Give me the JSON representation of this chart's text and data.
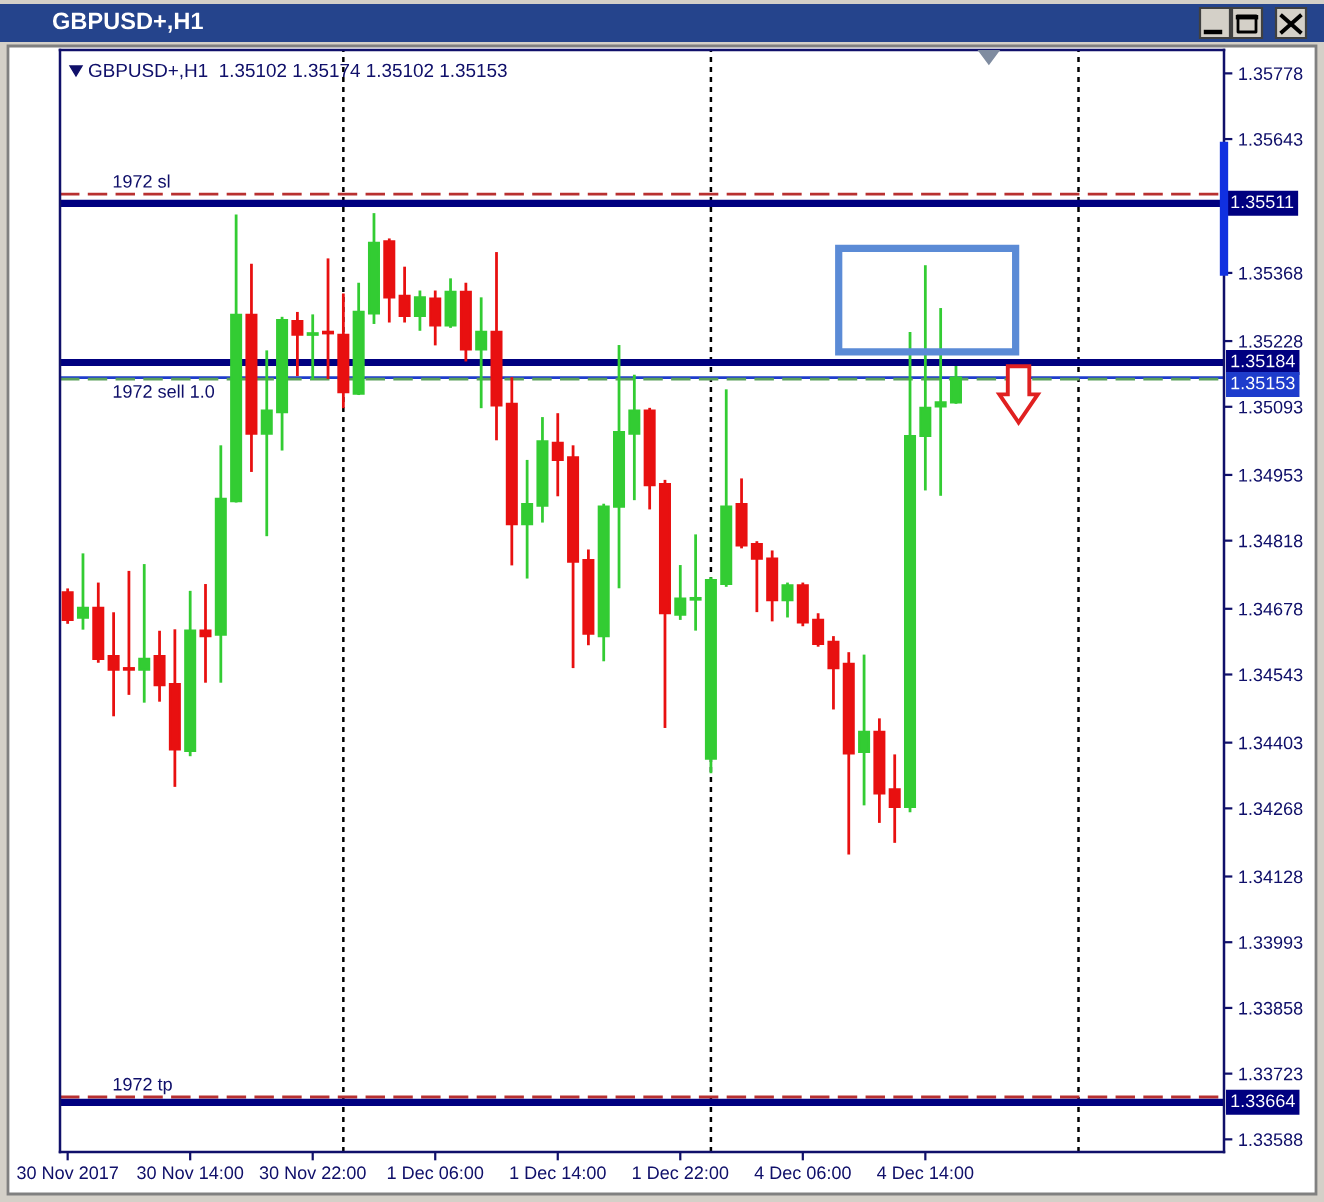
{
  "chart_data": {
    "type": "candlestick",
    "title": "GBPUSD+,H1",
    "subtitle": "GBPUSD+,H1  1.35102 1.35174 1.35102 1.35153",
    "categories": [
      "30 Nov 2017",
      null,
      null,
      null,
      null,
      null,
      null,
      null,
      "30 Nov 14:00",
      null,
      null,
      null,
      null,
      null,
      null,
      null,
      "30 Nov 22:00",
      null,
      null,
      null,
      null,
      null,
      null,
      null,
      "1 Dec 06:00",
      null,
      null,
      null,
      null,
      null,
      null,
      null,
      "1 Dec 14:00",
      null,
      null,
      null,
      null,
      null,
      null,
      null,
      "1 Dec 22:00",
      null,
      null,
      null,
      null,
      null,
      null,
      null,
      "4 Dec 06:00",
      null,
      null,
      null,
      null,
      null,
      null,
      null,
      "4 Dec 14:00",
      null,
      null,
      null,
      null,
      null,
      null,
      null,
      null,
      null,
      null,
      null,
      null,
      null,
      null,
      null,
      null,
      null,
      null,
      null
    ],
    "ohlc": [
      [
        1.34712,
        1.34717,
        1.3465,
        1.34655
      ],
      [
        1.3466,
        1.34789,
        1.34638,
        1.3468
      ],
      [
        1.3468,
        1.34729,
        1.3457,
        1.34575
      ],
      [
        1.34581,
        1.34668,
        1.3446,
        1.34553
      ],
      [
        1.34556,
        1.34753,
        1.34504,
        1.34553
      ],
      [
        1.34553,
        1.34767,
        1.34488,
        1.34575
      ],
      [
        1.34581,
        1.3463,
        1.3449,
        1.34521
      ],
      [
        1.34523,
        1.34633,
        1.34315,
        1.34389
      ],
      [
        1.34386,
        1.34712,
        1.34378,
        1.34633
      ],
      [
        1.34633,
        1.34726,
        1.34529,
        1.34622
      ],
      [
        1.34625,
        1.35011,
        1.34529,
        1.34904
      ],
      [
        1.34899,
        1.35485,
        1.34899,
        1.35282
      ],
      [
        1.35282,
        1.35384,
        1.34962,
        1.35038
      ],
      [
        1.35038,
        1.35206,
        1.3483,
        1.35085
      ],
      [
        1.35082,
        1.35275,
        1.35006,
        1.35271
      ],
      [
        1.35269,
        1.35285,
        1.35159,
        1.35241
      ],
      [
        1.35241,
        1.3528,
        1.35151,
        1.35244
      ],
      [
        1.35247,
        1.35395,
        1.35153,
        1.35244
      ],
      [
        1.35241,
        1.35323,
        1.35093,
        1.35123
      ],
      [
        1.3512,
        1.35345,
        1.3512,
        1.35288
      ],
      [
        1.35285,
        1.35488,
        1.35266,
        1.3543
      ],
      [
        1.35433,
        1.35436,
        1.35269,
        1.35318
      ],
      [
        1.35321,
        1.35378,
        1.35269,
        1.3528
      ],
      [
        1.3528,
        1.35329,
        1.35252,
        1.35318
      ],
      [
        1.35315,
        1.35329,
        1.35222,
        1.3526
      ],
      [
        1.3526,
        1.35354,
        1.35258,
        1.35329
      ],
      [
        1.35329,
        1.35345,
        1.35189,
        1.35211
      ],
      [
        1.35211,
        1.35315,
        1.35093,
        1.35247
      ],
      [
        1.35247,
        1.35408,
        1.35027,
        1.35096
      ],
      [
        1.35099,
        1.35151,
        1.3477,
        1.34852
      ],
      [
        1.34852,
        1.34981,
        1.34743,
        1.34893
      ],
      [
        1.3489,
        1.35069,
        1.34858,
        1.35022
      ],
      [
        1.35019,
        1.35077,
        1.34912,
        1.34984
      ],
      [
        1.34989,
        1.35011,
        1.34559,
        1.34775
      ],
      [
        1.34778,
        1.34797,
        1.34606,
        1.34627
      ],
      [
        1.34622,
        1.34891,
        1.34573,
        1.34888
      ],
      [
        1.34888,
        1.35217,
        1.34723,
        1.35041
      ],
      [
        1.35038,
        1.35156,
        1.34904,
        1.35085
      ],
      [
        1.35085,
        1.35088,
        1.34885,
        1.34932
      ],
      [
        1.34934,
        1.3494,
        1.34436,
        1.34669
      ],
      [
        1.34666,
        1.34765,
        1.34658,
        1.34699
      ],
      [
        1.34697,
        1.34828,
        1.34636,
        1.347
      ],
      [
        1.3437,
        1.3474,
        1.34343,
        1.34737
      ],
      [
        1.34729,
        1.35126,
        1.34726,
        1.34888
      ],
      [
        1.34893,
        1.34943,
        1.34805,
        1.34808
      ],
      [
        1.34811,
        1.34814,
        1.34674,
        1.34781
      ],
      [
        1.34781,
        1.34795,
        1.34655,
        1.34696
      ],
      [
        1.34696,
        1.34729,
        1.34663,
        1.34726
      ],
      [
        1.34726,
        1.34729,
        1.34645,
        1.3465
      ],
      [
        1.34655,
        1.34666,
        1.34603,
        1.34606
      ],
      [
        1.3461,
        1.34619,
        1.34474,
        1.34556
      ],
      [
        1.34565,
        1.34586,
        1.34176,
        1.34381
      ],
      [
        1.34384,
        1.34581,
        1.34277,
        1.34425
      ],
      [
        1.34425,
        1.3445,
        1.34241,
        1.34299
      ],
      [
        1.34307,
        1.34376,
        1.342,
        1.34271
      ],
      [
        1.34271,
        1.35244,
        1.34263,
        1.35033
      ],
      [
        1.35033,
        1.35381,
        1.34924,
        1.35091
      ],
      [
        1.35094,
        1.35293,
        1.34913,
        1.35102
      ],
      [
        1.35102,
        1.35174,
        1.35102,
        1.35153
      ],
      null,
      null,
      null,
      null,
      null,
      null,
      null,
      null,
      null,
      null,
      null,
      null,
      null,
      null,
      null,
      null,
      null
    ],
    "colors": [
      "#e81010",
      "#33cc33",
      "#e81010",
      "#e81010",
      "#e81010",
      "#33cc33",
      "#e81010",
      "#e81010",
      "#33cc33",
      "#e81010",
      "#33cc33",
      "#33cc33",
      "#e81010",
      "#33cc33",
      "#33cc33",
      "#e81010",
      "#33cc33",
      "#e81010",
      "#e81010",
      "#33cc33",
      "#33cc33",
      "#e81010",
      "#e81010",
      "#33cc33",
      "#e81010",
      "#33cc33",
      "#e81010",
      "#33cc33",
      "#e81010",
      "#e81010",
      "#33cc33",
      "#33cc33",
      "#e81010",
      "#e81010",
      "#e81010",
      "#33cc33",
      "#33cc33",
      "#33cc33",
      "#e81010",
      "#e81010",
      "#33cc33",
      "#33cc33",
      "#33cc33",
      "#33cc33",
      "#e81010",
      "#e81010",
      "#e81010",
      "#33cc33",
      "#e81010",
      "#e81010",
      "#e81010",
      "#e81010",
      "#33cc33",
      "#e81010",
      "#e81010",
      "#33cc33",
      "#33cc33",
      "#33cc33",
      "#33cc33",
      null,
      null,
      null,
      null,
      null,
      null,
      null,
      null,
      null,
      null,
      null,
      null,
      null,
      null,
      null,
      null,
      null
    ],
    "ylim": [
      1.33562,
      1.35826
    ],
    "yticks": [
      1.35778,
      1.35643,
      1.35368,
      1.35228,
      1.35093,
      1.34953,
      1.34818,
      1.34678,
      1.34543,
      1.34403,
      1.34268,
      1.34128,
      1.33993,
      1.33858,
      1.33723,
      1.33588
    ],
    "grid": "x",
    "ref_lines": [
      {
        "axis": "y",
        "value": 1.3553,
        "label": "1972 sl",
        "color": "#b83030",
        "line_style": "dashed"
      },
      {
        "axis": "y",
        "value": 1.35511,
        "label": "1.35511",
        "color": "#000080",
        "line_style": "solid"
      },
      {
        "axis": "y",
        "value": 1.35184,
        "label": "1.35184",
        "color": "#000080",
        "line_style": "solid"
      },
      {
        "axis": "y",
        "value": 1.35153,
        "label": "1.35153",
        "color": "#1e3ccc",
        "line_style": "solid"
      },
      {
        "axis": "y",
        "value": 1.3515,
        "label": "1972 sell 1.0",
        "color": "#5aa05a",
        "line_style": "dashed"
      },
      {
        "axis": "y",
        "value": 1.33675,
        "label": "1972 tp",
        "color": "#b83030",
        "line_style": "dashed"
      },
      {
        "axis": "y",
        "value": 1.33664,
        "label": "1.33664",
        "color": "#000080",
        "line_style": "solid"
      }
    ]
  }
}
